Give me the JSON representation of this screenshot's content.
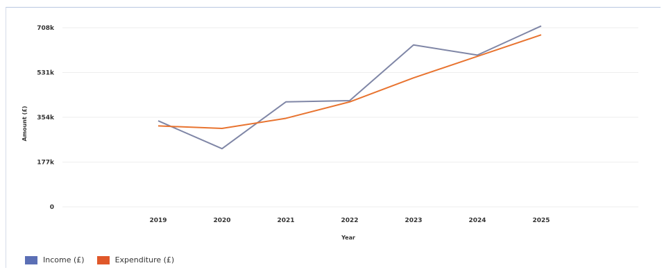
{
  "chart_data": {
    "type": "line",
    "xlabel": "Year",
    "ylabel": "Amount (£)",
    "x": [
      "2019",
      "2020",
      "2021",
      "2022",
      "2023",
      "2024",
      "2025"
    ],
    "yticks": [
      {
        "value": 0,
        "label": "0"
      },
      {
        "value": 177,
        "label": "177k"
      },
      {
        "value": 354,
        "label": "354k"
      },
      {
        "value": 531,
        "label": "531k"
      },
      {
        "value": 708,
        "label": "708k"
      }
    ],
    "ylim": [
      0,
      708
    ],
    "grid": true,
    "legend_position": "bottom-left",
    "series": [
      {
        "name": "Income (£)",
        "color": "#7f86a6",
        "values": [
          340,
          230,
          415,
          420,
          640,
          600,
          715
        ]
      },
      {
        "name": "Expenditure (£)",
        "color": "#e8732f",
        "values": [
          320,
          310,
          350,
          415,
          510,
          595,
          680
        ]
      }
    ]
  },
  "legend": {
    "income_label": "Income (£)",
    "income_color": "#5b6fb5",
    "expenditure_label": "Expenditure (£)",
    "expenditure_color": "#e0582a"
  }
}
